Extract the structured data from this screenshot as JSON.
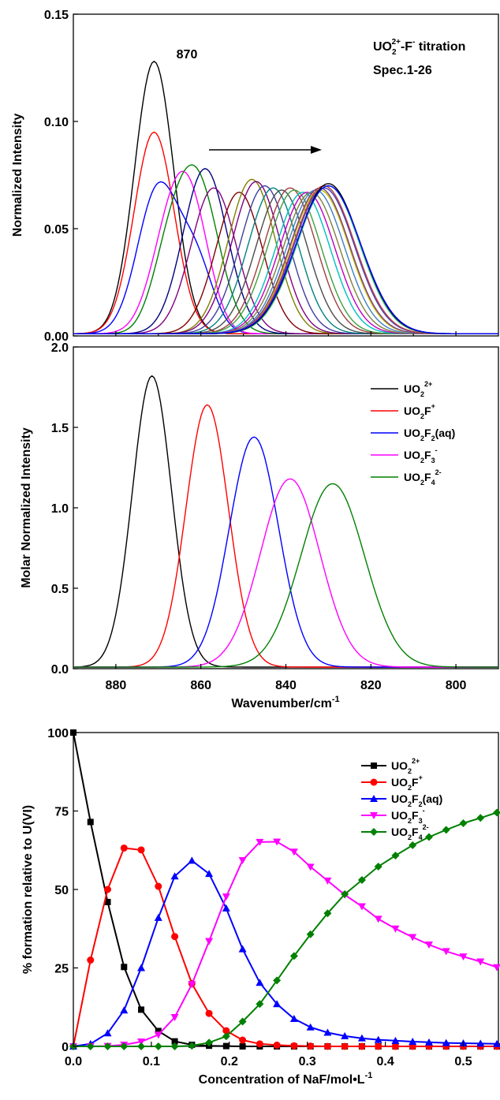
{
  "chart_data": [
    {
      "type": "line",
      "ylabel": "Normalized Intensity",
      "xlim": [
        890,
        790
      ],
      "ylim": [
        0,
        0.15
      ],
      "yticks": [
        "0.00",
        "0.05",
        "0.10",
        "0.15"
      ],
      "annotations": {
        "peak_label": "870",
        "title_line1_base": "UO",
        "title_line1_sub": "2",
        "title_line1_sup": "2+",
        "title_line1_rest": "-F",
        "title_line1_sup2": "-",
        "title_line1_end": " titration",
        "title_line2": "Spec.1-26",
        "arrow": "peak shift to lower wavenumber"
      },
      "series_count": 26,
      "series_peaks": [
        {
          "center": 871,
          "height": 0.127
        },
        {
          "center": 871,
          "height": 0.094
        },
        {
          "center": 870,
          "height": 0.068
        },
        {
          "center": 866,
          "height": 0.06
        },
        {
          "center": 861,
          "height": 0.072
        },
        {
          "center": 859,
          "height": 0.077
        },
        {
          "center": 857,
          "height": 0.068
        },
        {
          "center": 851,
          "height": 0.066
        },
        {
          "center": 848,
          "height": 0.072
        },
        {
          "center": 847,
          "height": 0.071
        },
        {
          "center": 845,
          "height": 0.069
        },
        {
          "center": 843,
          "height": 0.068
        },
        {
          "center": 841,
          "height": 0.067
        },
        {
          "center": 839,
          "height": 0.068
        },
        {
          "center": 838,
          "height": 0.067
        },
        {
          "center": 836,
          "height": 0.066
        },
        {
          "center": 835,
          "height": 0.066
        },
        {
          "center": 834,
          "height": 0.066
        },
        {
          "center": 833,
          "height": 0.067
        },
        {
          "center": 832,
          "height": 0.067
        },
        {
          "center": 832,
          "height": 0.068
        },
        {
          "center": 831,
          "height": 0.068
        },
        {
          "center": 831,
          "height": 0.069
        },
        {
          "center": 830,
          "height": 0.069
        },
        {
          "center": 830,
          "height": 0.07
        },
        {
          "center": 830,
          "height": 0.069
        }
      ],
      "colors": [
        "#000000",
        "#ff0000",
        "#0000ff",
        "#ff00ff",
        "#008000",
        "#00007f",
        "#7f007f",
        "#7f0000",
        "#7f7f00",
        "#7f007f",
        "#3f3f9f",
        "#008080",
        "#4b4b4b",
        "#9f3f3f",
        "#3f9f3f",
        "#00bfbf",
        "#bf00bf",
        "#7f7f3f",
        "#3f7fbf",
        "#bfbf00",
        "#7f3f7f",
        "#3f3fbf",
        "#bf3f3f",
        "#3fbf7f",
        "#000000",
        "#0000ff"
      ]
    },
    {
      "type": "line",
      "xlabel": "Wavenumber/cm",
      "xlabel_sup": "-1",
      "ylabel": "Molar Normalized Intensity",
      "xlim": [
        890,
        790
      ],
      "ylim": [
        0,
        2.0
      ],
      "xticks": [
        880,
        860,
        840,
        820,
        800
      ],
      "yticks": [
        "0.0",
        "0.5",
        "1.0",
        "1.5",
        "2.0"
      ],
      "legend_position": "top-right",
      "series": [
        {
          "name_base": "UO",
          "name_sub": "2",
          "name_sup": "2+",
          "name_rest": "",
          "color": "#000000",
          "center": 871.5,
          "height": 1.81,
          "width": 4.6
        },
        {
          "name_base": "UO",
          "name_sub": "2",
          "name_sup": "",
          "name_rest": "F",
          "name_sup2": "+",
          "color": "#ff0000",
          "center": 858.5,
          "height": 1.63,
          "width": 5.0
        },
        {
          "name_base": "UO",
          "name_sub": "2",
          "name_sup": "",
          "name_rest": "F",
          "name_sub2": "2",
          "name_end": "(aq)",
          "color": "#0000ff",
          "center": 847.5,
          "height": 1.43,
          "width": 5.8
        },
        {
          "name_base": "UO",
          "name_sub": "2",
          "name_sup": "",
          "name_rest": "F",
          "name_sub2": "3",
          "name_sup2": "-",
          "color": "#ff00ff",
          "center": 839,
          "height": 1.17,
          "width": 7.0
        },
        {
          "name_base": "UO",
          "name_sub": "2",
          "name_sup": "",
          "name_rest": "F",
          "name_sub2": "4",
          "name_sup2": "2-",
          "color": "#008000",
          "center": 829,
          "height": 1.14,
          "width": 7.5
        }
      ]
    },
    {
      "type": "line",
      "xlabel": "Concentration of NaF/mol•L",
      "xlabel_sup": "-1",
      "ylabel": "% formation relative to U(VI)",
      "xlim": [
        0,
        0.545
      ],
      "ylim": [
        0,
        100
      ],
      "xticks": [
        "0.0",
        "0.1",
        "0.2",
        "0.3",
        "0.4",
        "0.5"
      ],
      "yticks": [
        "0",
        "25",
        "50",
        "75",
        "100"
      ],
      "legend_position": "top-right",
      "x": [
        0,
        0.022,
        0.044,
        0.065,
        0.087,
        0.109,
        0.13,
        0.152,
        0.174,
        0.196,
        0.217,
        0.239,
        0.261,
        0.283,
        0.304,
        0.326,
        0.348,
        0.37,
        0.391,
        0.413,
        0.435,
        0.456,
        0.478,
        0.5,
        0.522,
        0.543
      ],
      "series": [
        {
          "name_base": "UO",
          "name_sub": "2",
          "name_sup": "2+",
          "marker": "square",
          "color": "#000000",
          "values": [
            100,
            71.5,
            46,
            25.3,
            11.7,
            4.9,
            1.6,
            0.5,
            0.2,
            0.1,
            0,
            0,
            0,
            0,
            0,
            0,
            0,
            0,
            0,
            0,
            0,
            0,
            0,
            0,
            0,
            0
          ]
        },
        {
          "name_base": "UO",
          "name_sub": "2",
          "name_rest": "F",
          "name_sup2": "+",
          "marker": "circle",
          "color": "#ff0000",
          "values": [
            0,
            27.5,
            50,
            63.2,
            62.6,
            51,
            35,
            20,
            10.5,
            5,
            2,
            0.8,
            0.4,
            0.2,
            0.1,
            0,
            0,
            0,
            0,
            0,
            0,
            0,
            0,
            0,
            0,
            0
          ]
        },
        {
          "name_base": "UO",
          "name_sub": "2",
          "name_rest": "F",
          "name_sub2": "2",
          "name_end": "(aq)",
          "marker": "triangle-up",
          "color": "#0000ff",
          "values": [
            0,
            0.8,
            4.2,
            11.5,
            25,
            41,
            54.2,
            59.2,
            55,
            44,
            31,
            20.3,
            13.5,
            8.8,
            6.1,
            4.4,
            3.3,
            2.6,
            2.1,
            1.8,
            1.5,
            1.3,
            1.1,
            1,
            0.9,
            0.8
          ]
        },
        {
          "name_base": "UO",
          "name_sub": "2",
          "name_rest": "F",
          "name_sub2": "3",
          "name_sup2": "-",
          "marker": "triangle-down",
          "color": "#ff00ff",
          "values": [
            0,
            0,
            0.1,
            0.5,
            1.5,
            3.7,
            9.3,
            19.8,
            33.5,
            47.7,
            59.3,
            65.1,
            65.2,
            62,
            57.2,
            52.8,
            48.3,
            44.6,
            40.6,
            37.5,
            34.8,
            32.4,
            30.3,
            28.6,
            27,
            25.2
          ]
        },
        {
          "name_base": "UO",
          "name_sub": "2",
          "name_rest": "F",
          "name_sub2": "4",
          "name_sup2": "2-",
          "marker": "diamond",
          "color": "#008000",
          "values": [
            0,
            0,
            0,
            0,
            0,
            0,
            0,
            0.2,
            1.2,
            3.2,
            7.9,
            13.5,
            21,
            28.8,
            35.7,
            42.4,
            48.5,
            53,
            57.3,
            60.8,
            64.1,
            66.7,
            69,
            71.1,
            72.8,
            74.5
          ]
        }
      ]
    }
  ]
}
